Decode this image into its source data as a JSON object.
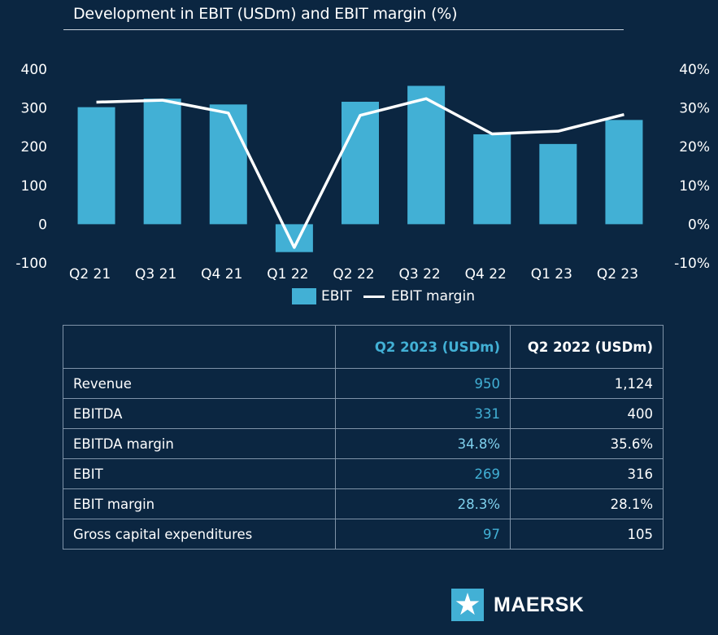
{
  "chart_data": {
    "type": "bar",
    "title": "Development in EBIT (USDm) and EBIT margin (%)",
    "categories": [
      "Q2 21",
      "Q3 21",
      "Q4 21",
      "Q1 22",
      "Q2 22",
      "Q3 22",
      "Q4 22",
      "Q1 23",
      "Q2 23"
    ],
    "series": [
      {
        "name": "EBIT",
        "type": "bar",
        "axis": "left",
        "values": [
          302,
          324,
          309,
          -72,
          316,
          357,
          232,
          207,
          269
        ]
      },
      {
        "name": "EBIT margin",
        "type": "line",
        "axis": "right",
        "values": [
          31.5,
          32.0,
          28.7,
          -6.0,
          28.1,
          32.4,
          23.3,
          24.0,
          28.3
        ]
      }
    ],
    "y_left": {
      "ylim": [
        -100,
        400
      ],
      "ticks": [
        "400",
        "300",
        "200",
        "100",
        "0",
        "-100"
      ]
    },
    "y_right": {
      "ylim": [
        -10,
        40
      ],
      "ticks": [
        "40%",
        "30%",
        "20%",
        "10%",
        "0%",
        "-10%"
      ]
    },
    "legend_placement": "bottom",
    "colors": {
      "bar": "#42b0d5",
      "line": "#ffffff",
      "background": "#0b2641"
    }
  },
  "table": {
    "headers": [
      "",
      "Q2 2023 (USDm)",
      "Q2 2022 (USDm)"
    ],
    "rows": [
      {
        "label": "Revenue",
        "q2_2023": "950",
        "q2_2022": "1,124"
      },
      {
        "label": "EBITDA",
        "q2_2023": "331",
        "q2_2022": "400"
      },
      {
        "label": "EBITDA margin",
        "q2_2023": "34.8%",
        "q2_2022": "35.6%"
      },
      {
        "label": "EBIT",
        "q2_2023": "269",
        "q2_2022": "316"
      },
      {
        "label": "EBIT margin",
        "q2_2023": "28.3%",
        "q2_2022": "28.1%"
      },
      {
        "label": "Gross capital expenditures",
        "q2_2023": "97",
        "q2_2022": "105"
      }
    ]
  },
  "logo": {
    "text": "MAERSK",
    "icon": "maersk-star-icon"
  }
}
